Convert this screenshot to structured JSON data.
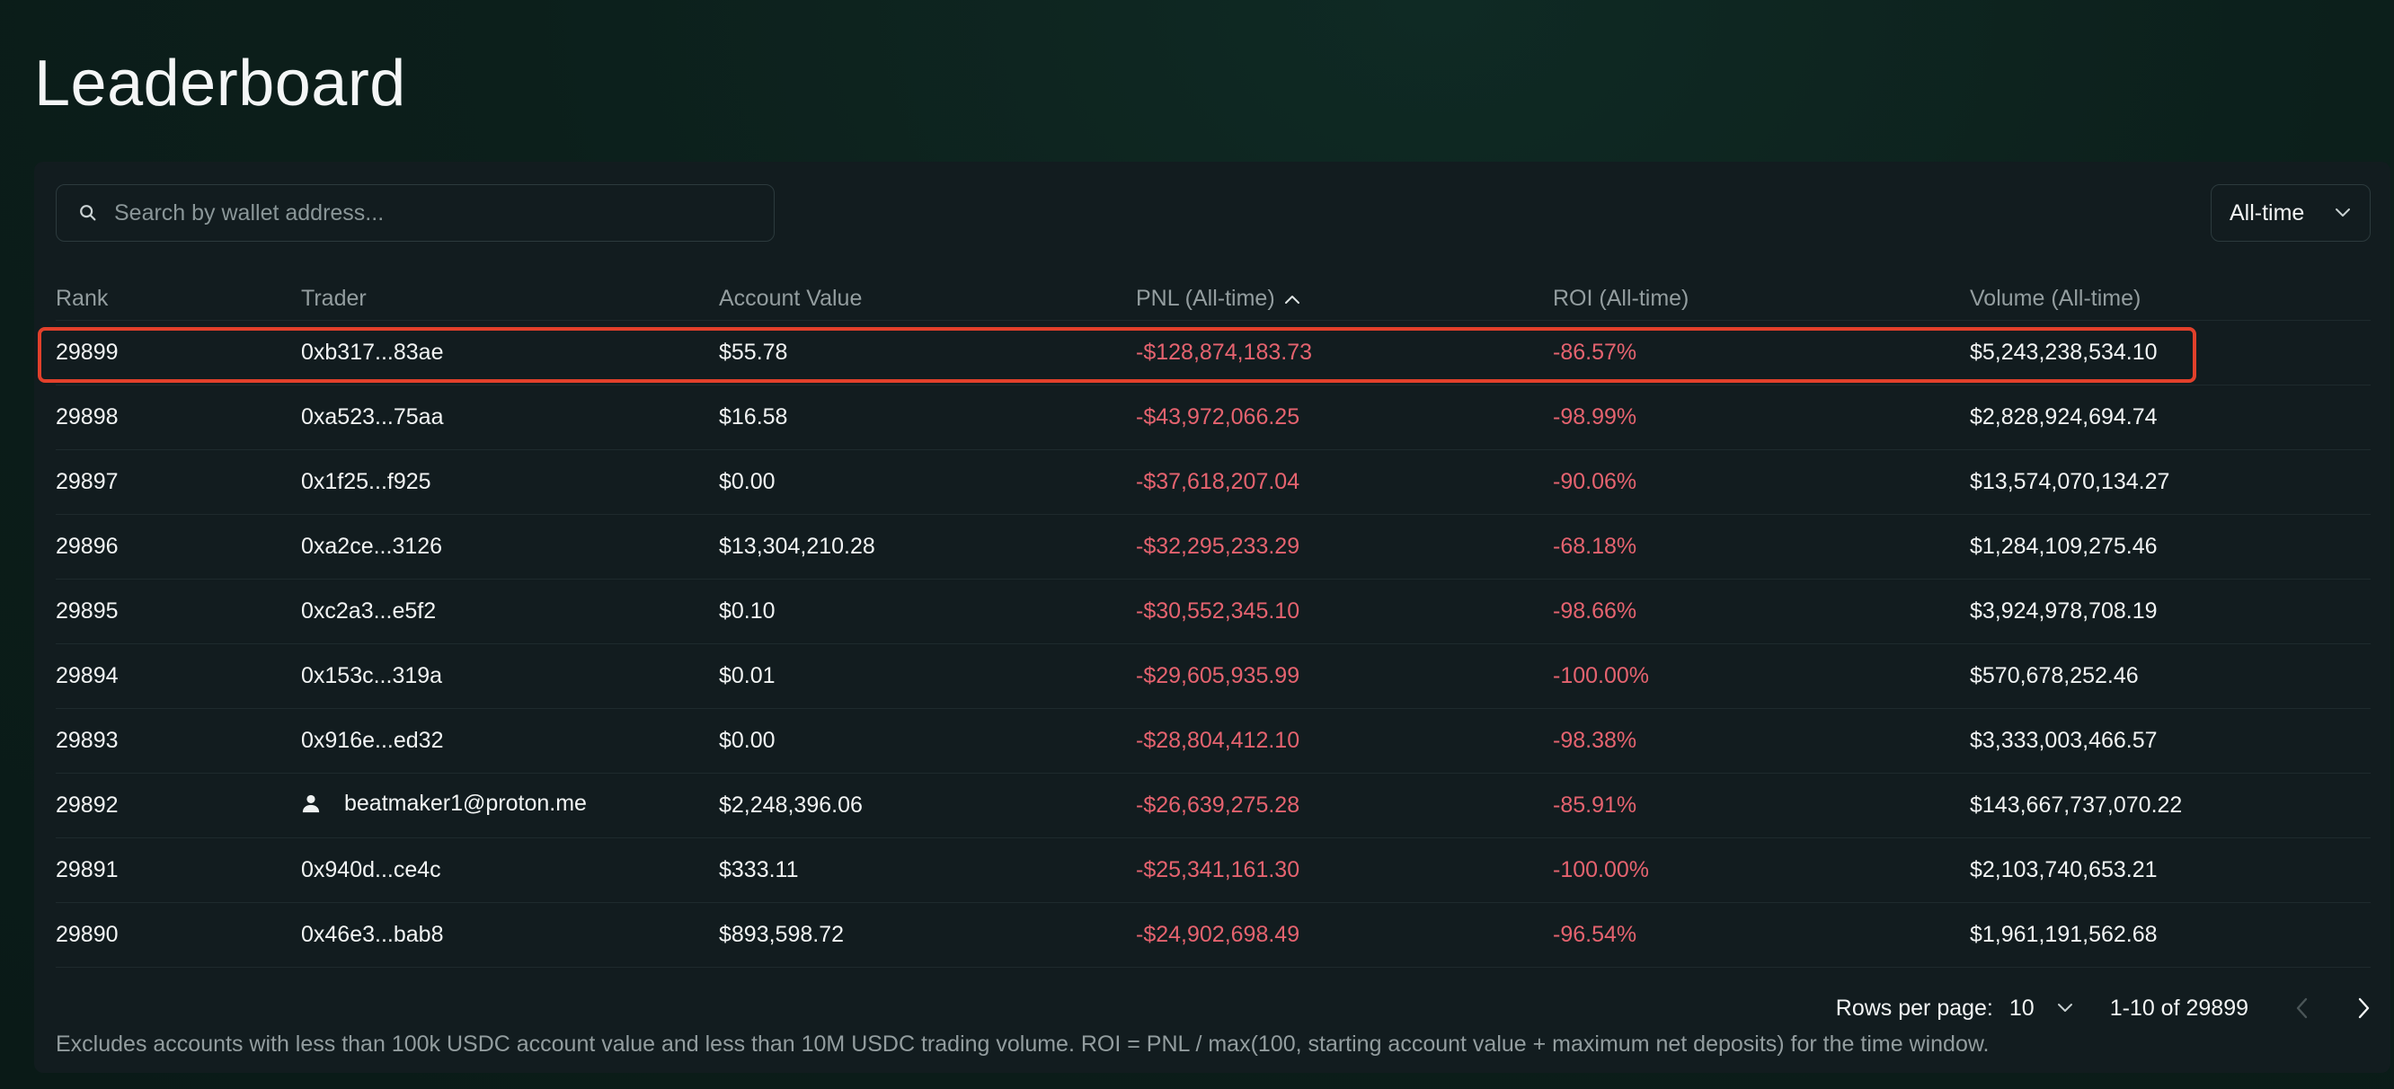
{
  "page": {
    "title": "Leaderboard"
  },
  "toolbar": {
    "search_placeholder": "Search by wallet address...",
    "time_range": "All-time"
  },
  "table": {
    "columns": {
      "rank": "Rank",
      "trader": "Trader",
      "account_value": "Account Value",
      "pnl": "PNL (All-time)",
      "roi": "ROI (All-time)",
      "volume": "Volume (All-time)"
    },
    "rows": [
      {
        "rank": "29899",
        "trader": "0xb317...83ae",
        "account_value": "$55.78",
        "pnl": "-$128,874,183.73",
        "roi": "-86.57%",
        "volume": "$5,243,238,534.10"
      },
      {
        "rank": "29898",
        "trader": "0xa523...75aa",
        "account_value": "$16.58",
        "pnl": "-$43,972,066.25",
        "roi": "-98.99%",
        "volume": "$2,828,924,694.74"
      },
      {
        "rank": "29897",
        "trader": "0x1f25...f925",
        "account_value": "$0.00",
        "pnl": "-$37,618,207.04",
        "roi": "-90.06%",
        "volume": "$13,574,070,134.27"
      },
      {
        "rank": "29896",
        "trader": "0xa2ce...3126",
        "account_value": "$13,304,210.28",
        "pnl": "-$32,295,233.29",
        "roi": "-68.18%",
        "volume": "$1,284,109,275.46"
      },
      {
        "rank": "29895",
        "trader": "0xc2a3...e5f2",
        "account_value": "$0.10",
        "pnl": "-$30,552,345.10",
        "roi": "-98.66%",
        "volume": "$3,924,978,708.19"
      },
      {
        "rank": "29894",
        "trader": "0x153c...319a",
        "account_value": "$0.01",
        "pnl": "-$29,605,935.99",
        "roi": "-100.00%",
        "volume": "$570,678,252.46"
      },
      {
        "rank": "29893",
        "trader": "0x916e...ed32",
        "account_value": "$0.00",
        "pnl": "-$28,804,412.10",
        "roi": "-98.38%",
        "volume": "$3,333,003,466.57"
      },
      {
        "rank": "29892",
        "trader": "beatmaker1@proton.me",
        "account_value": "$2,248,396.06",
        "pnl": "-$26,639,275.28",
        "roi": "-85.91%",
        "volume": "$143,667,737,070.22"
      },
      {
        "rank": "29891",
        "trader": "0x940d...ce4c",
        "account_value": "$333.11",
        "pnl": "-$25,341,161.30",
        "roi": "-100.00%",
        "volume": "$2,103,740,653.21"
      },
      {
        "rank": "29890",
        "trader": "0x46e3...bab8",
        "account_value": "$893,598.72",
        "pnl": "-$24,902,698.49",
        "roi": "-96.54%",
        "volume": "$1,961,191,562.68"
      }
    ]
  },
  "pagination": {
    "rows_per_page_label": "Rows per page:",
    "rows_per_page": "10",
    "range_text": "1-10 of 29899"
  },
  "footnote": "Excludes accounts with less than 100k USDC account value and less than 10M USDC trading volume. ROI = PNL / max(100, starting account value + maximum net deposits) for the time window.",
  "colors": {
    "negative": "#e5636f",
    "highlight": "#e2402b"
  }
}
